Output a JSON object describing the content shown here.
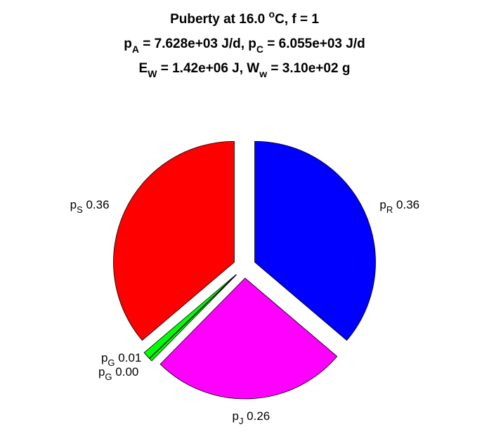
{
  "chart_data": {
    "type": "pie",
    "title_lines": [
      [
        {
          "text": "Puberty at 16.0 "
        },
        {
          "sup": "o"
        },
        {
          "text": "C, f = 1"
        }
      ],
      [
        {
          "text": "p"
        },
        {
          "sub": "A"
        },
        {
          "text": " = 7.628e+03 J/d,  p"
        },
        {
          "sub": "C"
        },
        {
          "text": " = 6.055e+03 J/d"
        }
      ],
      [
        {
          "text": "E"
        },
        {
          "sub": "W"
        },
        {
          "text": " = 1.42e+06 J, W"
        },
        {
          "sub": "w"
        },
        {
          "text": " = 3.10e+02 g"
        }
      ]
    ],
    "categories": [
      {
        "main": "p",
        "sub": "R"
      },
      {
        "main": "p",
        "sub": "J"
      },
      {
        "main": "p",
        "sub": "G"
      },
      {
        "main": "p",
        "sub": "G"
      },
      {
        "main": "p",
        "sub": "S"
      }
    ],
    "values": [
      0.36,
      0.26,
      0.004,
      0.01,
      0.36
    ],
    "value_labels": [
      "0.36",
      "0.26",
      "0.00",
      "0.01",
      "0.36"
    ],
    "colors": [
      "#0000ff",
      "#ff00ff",
      "#00ff00",
      "#00ff00",
      "#ff0000"
    ]
  }
}
